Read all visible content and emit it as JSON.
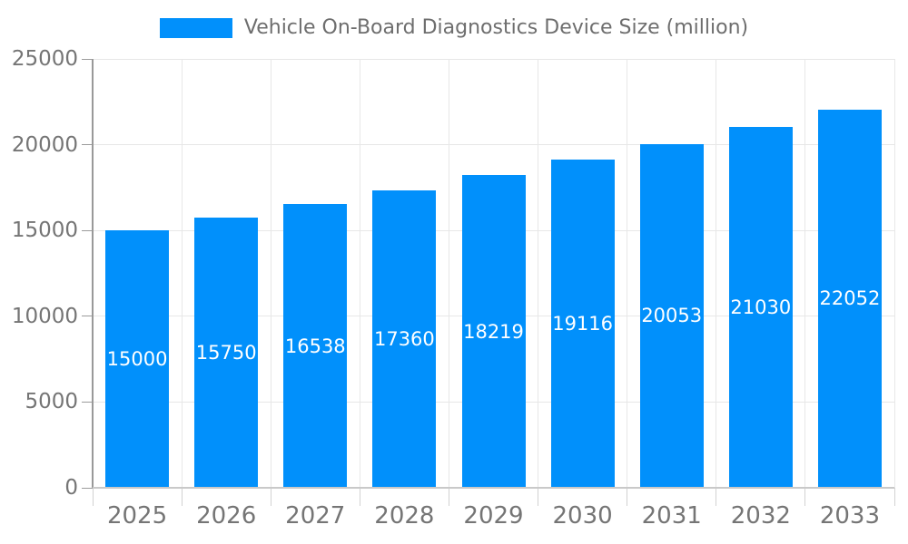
{
  "chart_data": {
    "type": "bar",
    "title": "Vehicle On-Board Diagnostics Device Size (million)",
    "legend_position": "top",
    "categories": [
      "2025",
      "2026",
      "2027",
      "2028",
      "2029",
      "2030",
      "2031",
      "2032",
      "2033"
    ],
    "series": [
      {
        "name": "Vehicle On-Board Diagnostics Device Size (million)",
        "values": [
          15000,
          15750,
          16538,
          17360,
          18219,
          19116,
          20053,
          21030,
          22052
        ]
      }
    ],
    "bar_labels": [
      "15000",
      "15750",
      "16538",
      "17360",
      "18219",
      "19116",
      "20053",
      "21030",
      "22052"
    ],
    "xlabel": "",
    "ylabel": "",
    "ylim": [
      0,
      25000
    ],
    "yticks": [
      0,
      5000,
      10000,
      15000,
      20000,
      25000
    ],
    "ytick_labels": [
      "0",
      "5000",
      "10000",
      "15000",
      "20000",
      "25000"
    ],
    "grid": true,
    "colors": {
      "bar": "#0190fb",
      "bar_label_text": "#ffffff",
      "axis_label_text": "#757575",
      "legend_text": "#6e6e6e",
      "gridline": "#e7e7e7",
      "y_axis_line": "#999999",
      "x_axis_line": "#c9c9c9",
      "x_tick": "#d2d2d2",
      "y_tick": "#9b9b9b",
      "background": "#ffffff"
    }
  }
}
